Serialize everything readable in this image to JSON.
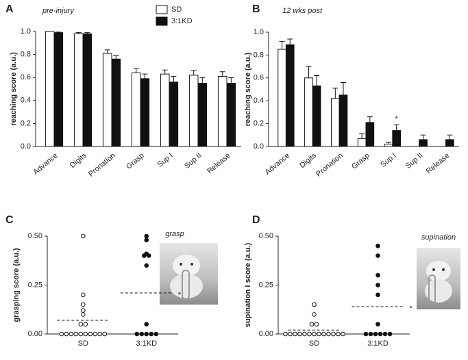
{
  "chart_data": [
    {
      "type": "bar",
      "panel": "A",
      "title": "pre-injury",
      "y_label": "reaching score (a.u.)",
      "categories": [
        "Advance",
        "Digits",
        "Pronation",
        "Grasp",
        "Sup I",
        "Sup II",
        "Release"
      ],
      "series": [
        {
          "name": "SD",
          "color": "#ffffff",
          "values": [
            1.0,
            0.98,
            0.81,
            0.64,
            0.63,
            0.62,
            0.61
          ],
          "errors": [
            0.0,
            0.01,
            0.03,
            0.04,
            0.035,
            0.04,
            0.04
          ]
        },
        {
          "name": "3:1KD",
          "color": "#111111",
          "values": [
            0.99,
            0.98,
            0.76,
            0.59,
            0.56,
            0.55,
            0.55
          ],
          "errors": [
            0.005,
            0.01,
            0.03,
            0.04,
            0.05,
            0.05,
            0.05
          ]
        }
      ],
      "ylim": [
        0,
        1.0
      ],
      "yticks": [
        {
          "value": 0,
          "label": "0.0"
        },
        0.2,
        0.4,
        0.6,
        0.8,
        {
          "value": 1,
          "label": "1.0"
        }
      ],
      "legend": "top-right"
    },
    {
      "type": "bar",
      "panel": "B",
      "title": "12 wks post",
      "y_label": "reaching score (a.u.)",
      "categories": [
        "Advance",
        "Digits",
        "Pronation",
        "Grasp",
        "Sup I",
        "Sup II",
        "Release"
      ],
      "series": [
        {
          "name": "SD",
          "color": "#ffffff",
          "values": [
            0.85,
            0.6,
            0.42,
            0.07,
            0.02,
            0,
            0
          ],
          "errors": [
            0.07,
            0.1,
            0.09,
            0.04,
            0.015,
            0,
            0
          ]
        },
        {
          "name": "3:1KD",
          "color": "#111111",
          "values": [
            0.89,
            0.53,
            0.45,
            0.21,
            0.14,
            0.06,
            0.06
          ],
          "errors": [
            0.05,
            0.09,
            0.11,
            0.05,
            0.05,
            0.04,
            0.04
          ]
        }
      ],
      "ylim": [
        0,
        1.0
      ],
      "yticks": [
        {
          "value": 0,
          "label": "0.0"
        },
        0.2,
        0.4,
        0.6,
        0.8,
        {
          "value": 1,
          "label": "1.0"
        }
      ],
      "annotation": "*"
    },
    {
      "type": "dot",
      "panel": "C",
      "image_label": "grasp",
      "y_label": "grasping score (a.u.)",
      "series": [
        {
          "name": "SD",
          "color": "#ffffff",
          "values": [
            0.5,
            0.2,
            0.15,
            0.12,
            0.1,
            0.05,
            0.05,
            0,
            0,
            0,
            0,
            0,
            0,
            0,
            0,
            0,
            0
          ],
          "mean": 0.07
        },
        {
          "name": "3:1KD",
          "color": "#111111",
          "values": [
            0.5,
            0.48,
            0.41,
            0.4,
            0.4,
            0.35,
            0.05,
            0,
            0,
            0,
            0,
            0
          ],
          "mean": 0.21
        }
      ],
      "ylim": [
        0,
        0.5
      ],
      "yticks": [
        {
          "value": 0,
          "label": "0.00"
        },
        0.25,
        {
          "value": 0.5,
          "label": "0.50"
        }
      ],
      "annotation": "*"
    },
    {
      "type": "dot",
      "panel": "D",
      "image_label": "supination",
      "y_label": "supination I score (a.u.)",
      "series": [
        {
          "name": "SD",
          "color": "#ffffff",
          "values": [
            0.15,
            0.1,
            0.05,
            0.05,
            0,
            0,
            0,
            0,
            0,
            0,
            0,
            0,
            0,
            0,
            0,
            0,
            0
          ],
          "mean": 0.02
        },
        {
          "name": "3:1KD",
          "color": "#111111",
          "values": [
            0.45,
            0.4,
            0.3,
            0.25,
            0.2,
            0.05,
            0,
            0,
            0,
            0,
            0,
            0
          ],
          "mean": 0.14
        }
      ],
      "ylim": [
        0,
        0.5
      ],
      "yticks": [
        {
          "value": 0,
          "label": "0.00"
        },
        0.25,
        {
          "value": 0.5,
          "label": "0.50"
        }
      ],
      "annotation": "*"
    }
  ]
}
